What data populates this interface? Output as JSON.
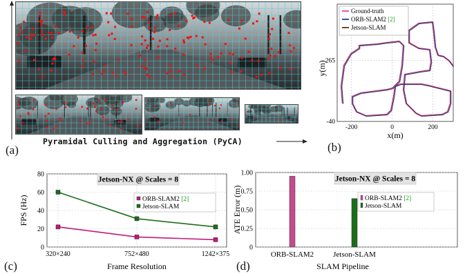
{
  "panels": {
    "a": {
      "label": "(a)",
      "caption": "Pyramidal Culling and Aggregation (PyCA)"
    },
    "b": {
      "label": "(b)"
    },
    "c": {
      "label": "(c)"
    },
    "d": {
      "label": "(d)"
    }
  },
  "colors": {
    "ground_truth": "#e0489a",
    "orb": "#c2187a",
    "orb_bar": "#c44b8c",
    "jetson": "#1a6e1a",
    "trajectory_blue": "#1f3f8f",
    "trajectory_brown": "#5a3a14",
    "grid_cyan": "#3fd6e6",
    "features": "#ee1111"
  },
  "chart_data": [
    {
      "id": "b",
      "type": "line",
      "xlabel": "x(m)",
      "ylabel": "y(m)",
      "x_ticks": [
        "-200",
        "0",
        "200"
      ],
      "y_ticks": [
        "265",
        "-40"
      ],
      "xlim": [
        -270,
        300
      ],
      "ylim": [
        -40,
        545
      ],
      "legend": [
        "Ground-truth",
        "ORB-SLAM2 [2]",
        "Jetson-SLAM"
      ],
      "legend_position": "top-left",
      "grid": true
    },
    {
      "id": "c",
      "type": "line",
      "title": "Jetson-NX @ Scales = 8",
      "xlabel": "Frame Resolution",
      "ylabel": "FPS (Hz)",
      "categories": [
        "320×240",
        "752×480",
        "1242×375"
      ],
      "y_ticks": [
        "0",
        "20",
        "40",
        "60",
        "80"
      ],
      "ylim": [
        0,
        80
      ],
      "series": [
        {
          "name": "ORB-SLAM2 [2]",
          "values": [
            22,
            11,
            8
          ]
        },
        {
          "name": "Jetson-SLAM",
          "values": [
            60,
            31,
            22
          ]
        }
      ],
      "legend_position": "right",
      "grid": true
    },
    {
      "id": "d",
      "type": "bar",
      "title": "Jetson-NX @ Scales = 8",
      "xlabel": "SLAM Pipeline",
      "ylabel": "ATE Error (m)",
      "categories": [
        "ORB-SLAM2",
        "Jetson-SLAM"
      ],
      "y_ticks": [
        "0",
        "0.25",
        "0.50",
        "0.75",
        "1.00"
      ],
      "ylim": [
        0,
        1.0
      ],
      "series": [
        {
          "name": "ORB-SLAM2 [2]",
          "values": [
            0.95,
            0
          ]
        },
        {
          "name": "Jetson-SLAM",
          "values": [
            0,
            0.65
          ]
        }
      ],
      "legend_position": "top-right",
      "grid": true
    }
  ]
}
